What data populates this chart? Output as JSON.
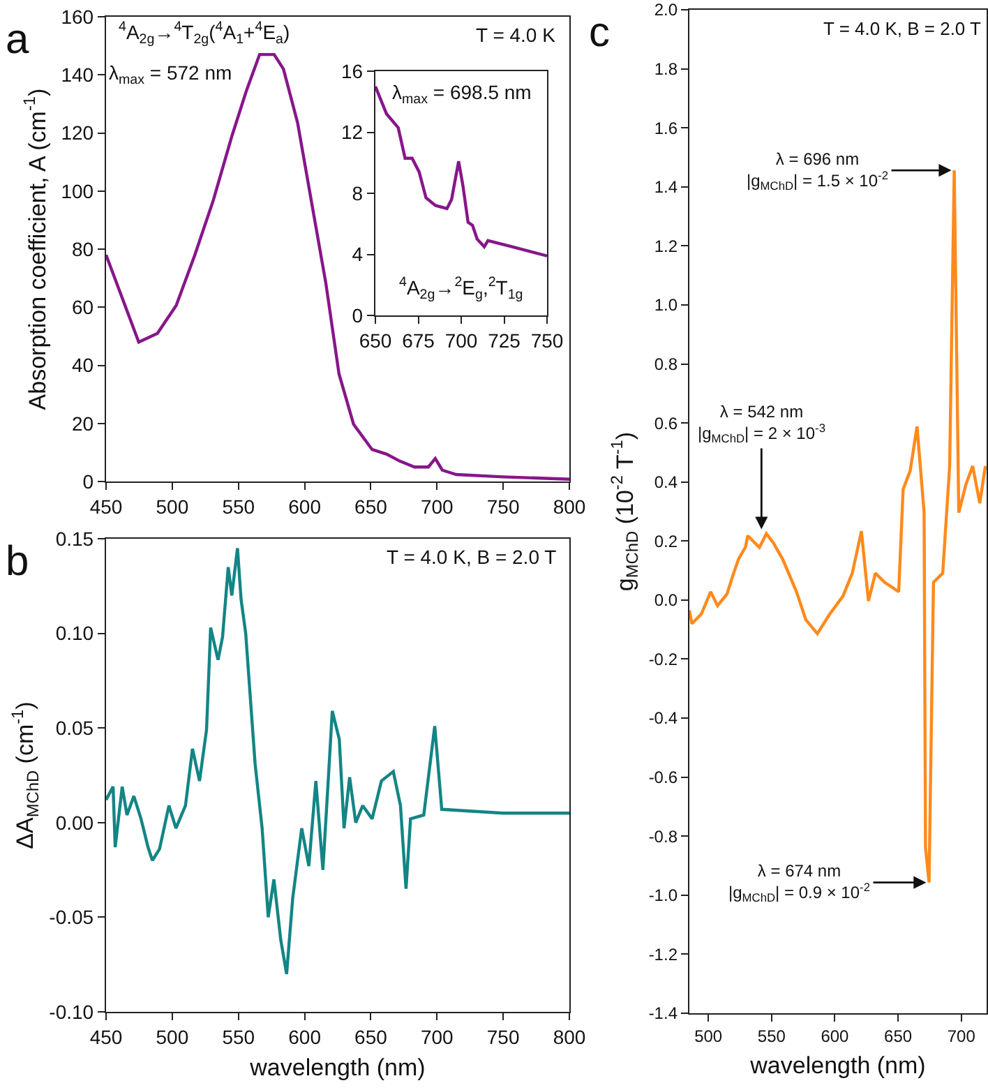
{
  "chart_data": [
    {
      "type": "line",
      "title": "a",
      "ylabel": "Absorption coefficient, A (cm$^{-1}$)",
      "xlim": [
        450,
        800
      ],
      "ylim": [
        0,
        160
      ],
      "xticks": [
        450,
        500,
        550,
        600,
        650,
        700,
        750,
        800
      ],
      "yticks": [
        0,
        20,
        40,
        60,
        80,
        100,
        120,
        140,
        160
      ],
      "annotations": [
        "$^{4}$A$_{2g}$→$^{4}$T$_{2g}$($^{4}$A$_{1}$+$^{4}$E$_{a}$)",
        "λ$_{max}$ = 572 nm",
        "T = 4.0 K"
      ],
      "series": [
        {
          "color": "#87168a",
          "x": [
            450,
            474.7,
            488.8,
            503,
            517,
            531,
            545,
            556,
            566,
            577,
            584,
            594.7,
            605,
            616,
            626,
            637,
            651,
            662,
            672,
            683,
            693.5,
            698.7,
            704,
            714.6,
            750,
            800
          ],
          "values": [
            78,
            48,
            51,
            60.6,
            77.9,
            96.8,
            118.8,
            134.5,
            147,
            147,
            142,
            123.5,
            96.8,
            68.4,
            37,
            19.7,
            11,
            9.4,
            7,
            5,
            5,
            7.9,
            3.9,
            2.4,
            1.6,
            0.8
          ]
        }
      ]
    },
    {
      "type": "line",
      "xlim": [
        650,
        750
      ],
      "ylim": [
        0,
        16
      ],
      "xticks": [
        650,
        675,
        700,
        725,
        750
      ],
      "yticks": [
        0,
        4,
        8,
        12,
        16
      ],
      "annotations": [
        "λ$_{max}$ = 698.5 nm",
        "$^{4}$A$_{2g}$→$^{2}$E$_{g}$,$^{2}$T$_{1g}$"
      ],
      "series": [
        {
          "color": "#87168a",
          "x": [
            650,
            656.5,
            663.3,
            667.3,
            671.4,
            675.5,
            679.5,
            685,
            691.7,
            694.4,
            698.5,
            701,
            704,
            706.6,
            709.3,
            713.4,
            715.6,
            729.7,
            750
          ],
          "values": [
            15,
            13.2,
            12.3,
            10.3,
            10.3,
            9.4,
            7.7,
            7.2,
            7,
            7.6,
            10.1,
            8.5,
            6.1,
            5.9,
            5,
            4.5,
            4.9,
            4.5,
            3.9
          ]
        }
      ]
    },
    {
      "type": "line",
      "title": "b",
      "xlabel": "wavelength (nm)",
      "ylabel": "ΔA$_{MChD}$ (cm$^{-1}$)",
      "xlim": [
        450,
        800
      ],
      "ylim": [
        -0.1,
        0.15
      ],
      "xticks": [
        450,
        500,
        550,
        600,
        650,
        700,
        750,
        800
      ],
      "yticks": [
        {
          "value": 0.15,
          "label": "0.15"
        },
        {
          "value": 0.1,
          "label": "0.10"
        },
        {
          "value": 0.05,
          "label": "0.05"
        },
        {
          "value": 0,
          "label": "0.00"
        },
        {
          "value": -0.05,
          "label": "-0.05"
        },
        {
          "value": -0.1,
          "label": "-0.10"
        }
      ],
      "annotations": [
        "T = 4.0 K, B = 2.0 T"
      ],
      "series": [
        {
          "color": "#138585",
          "x": [
            450,
            455.3,
            456.9,
            462.2,
            465.8,
            471,
            476.4,
            481.7,
            485,
            490.4,
            497.5,
            502.8,
            510,
            515.3,
            520.6,
            525.9,
            529,
            534.6,
            538,
            542.3,
            545,
            549.3,
            552,
            555.5,
            559,
            562.6,
            567.9,
            572.5,
            576.8,
            582,
            586.4,
            591,
            597.8,
            603.2,
            608.5,
            613.8,
            617.4,
            620.9,
            626.2,
            629.8,
            634,
            638.6,
            643.9,
            651,
            658,
            667,
            672.4,
            676.6,
            680,
            690,
            698.3,
            703.6,
            750,
            800
          ],
          "values": [
            0.012,
            0.019,
            -0.013,
            0.019,
            0.004,
            0.014,
            0.002,
            -0.013,
            -0.02,
            -0.014,
            0.009,
            -0.003,
            0.009,
            0.039,
            0.022,
            0.049,
            0.103,
            0.086,
            0.098,
            0.135,
            0.12,
            0.145,
            0.118,
            0.1,
            0.066,
            0.031,
            -0.003,
            -0.05,
            -0.03,
            -0.062,
            -0.08,
            -0.04,
            -0.003,
            -0.023,
            0.022,
            -0.025,
            0.017,
            0.059,
            0.044,
            -0.003,
            0.024,
            0,
            0.009,
            0.002,
            0.022,
            0.027,
            0.009,
            -0.035,
            0.002,
            0.004,
            0.051,
            0.007,
            0.005,
            0.005
          ]
        }
      ]
    },
    {
      "type": "line",
      "title": "c",
      "xlabel": "wavelength (nm)",
      "ylabel": "g$_{MChD}$ (10$^{-2}$ T$^{-1}$)",
      "xlim": [
        485,
        720
      ],
      "ylim": [
        -1.4,
        2.0
      ],
      "xticks": [
        500,
        550,
        600,
        650,
        700
      ],
      "yticks": [
        -1.4,
        -1.2,
        {
          "value": -1,
          "label": "-1.0"
        },
        -0.8,
        -0.6,
        -0.4,
        -0.2,
        {
          "value": 0,
          "label": "0.0"
        },
        0.2,
        0.4,
        0.6,
        0.8,
        {
          "value": 1,
          "label": "1.0"
        },
        1.2,
        1.4,
        1.6,
        1.8,
        {
          "value": 2,
          "label": "2.0"
        }
      ],
      "annotations": [
        "T = 4.0 K, B = 2.0 T",
        {
          "text": "λ = 696 nm\n|g$_{MChD}$| = 1.5 × 10$^{-2}$",
          "x": 694.4,
          "y": 1.456
        },
        {
          "text": "λ = 542 nm\n|g$_{MChD}$| = 2 × 10$^{-3}$",
          "x": 542,
          "y": 0.23
        },
        {
          "text": "λ = 674 nm\n|g$_{MChD}$| = 0.9 × 10$^{-2}$",
          "x": 674.5,
          "y": -0.957
        }
      ],
      "series": [
        {
          "color": "#ff8a1c",
          "x": [
            485,
            487,
            494.5,
            501.8,
            507.3,
            514.7,
            520,
            523.9,
            529.4,
            531.2,
            540.4,
            545.9,
            551.4,
            558.7,
            569.7,
            577,
            586.2,
            595.4,
            606.4,
            613.8,
            621,
            626.6,
            632.1,
            639.4,
            650.5,
            654,
            659.6,
            665,
            670.6,
            671.7,
            674.5,
            678,
            685.3,
            690.8,
            694.4,
            698,
            703.6,
            709,
            714.6,
            719
          ],
          "values": [
            -0.035,
            -0.08,
            -0.047,
            0.028,
            -0.019,
            0.02,
            0.091,
            0.139,
            0.18,
            0.218,
            0.178,
            0.225,
            0.194,
            0.139,
            0.028,
            -0.066,
            -0.114,
            -0.051,
            0.013,
            0.091,
            0.233,
            -0.003,
            0.091,
            0.06,
            0.028,
            0.375,
            0.438,
            0.588,
            0.296,
            -0.838,
            -0.957,
            0.06,
            0.091,
            0.454,
            1.456,
            0.296,
            0.391,
            0.454,
            0.328,
            0.454
          ]
        }
      ]
    }
  ]
}
